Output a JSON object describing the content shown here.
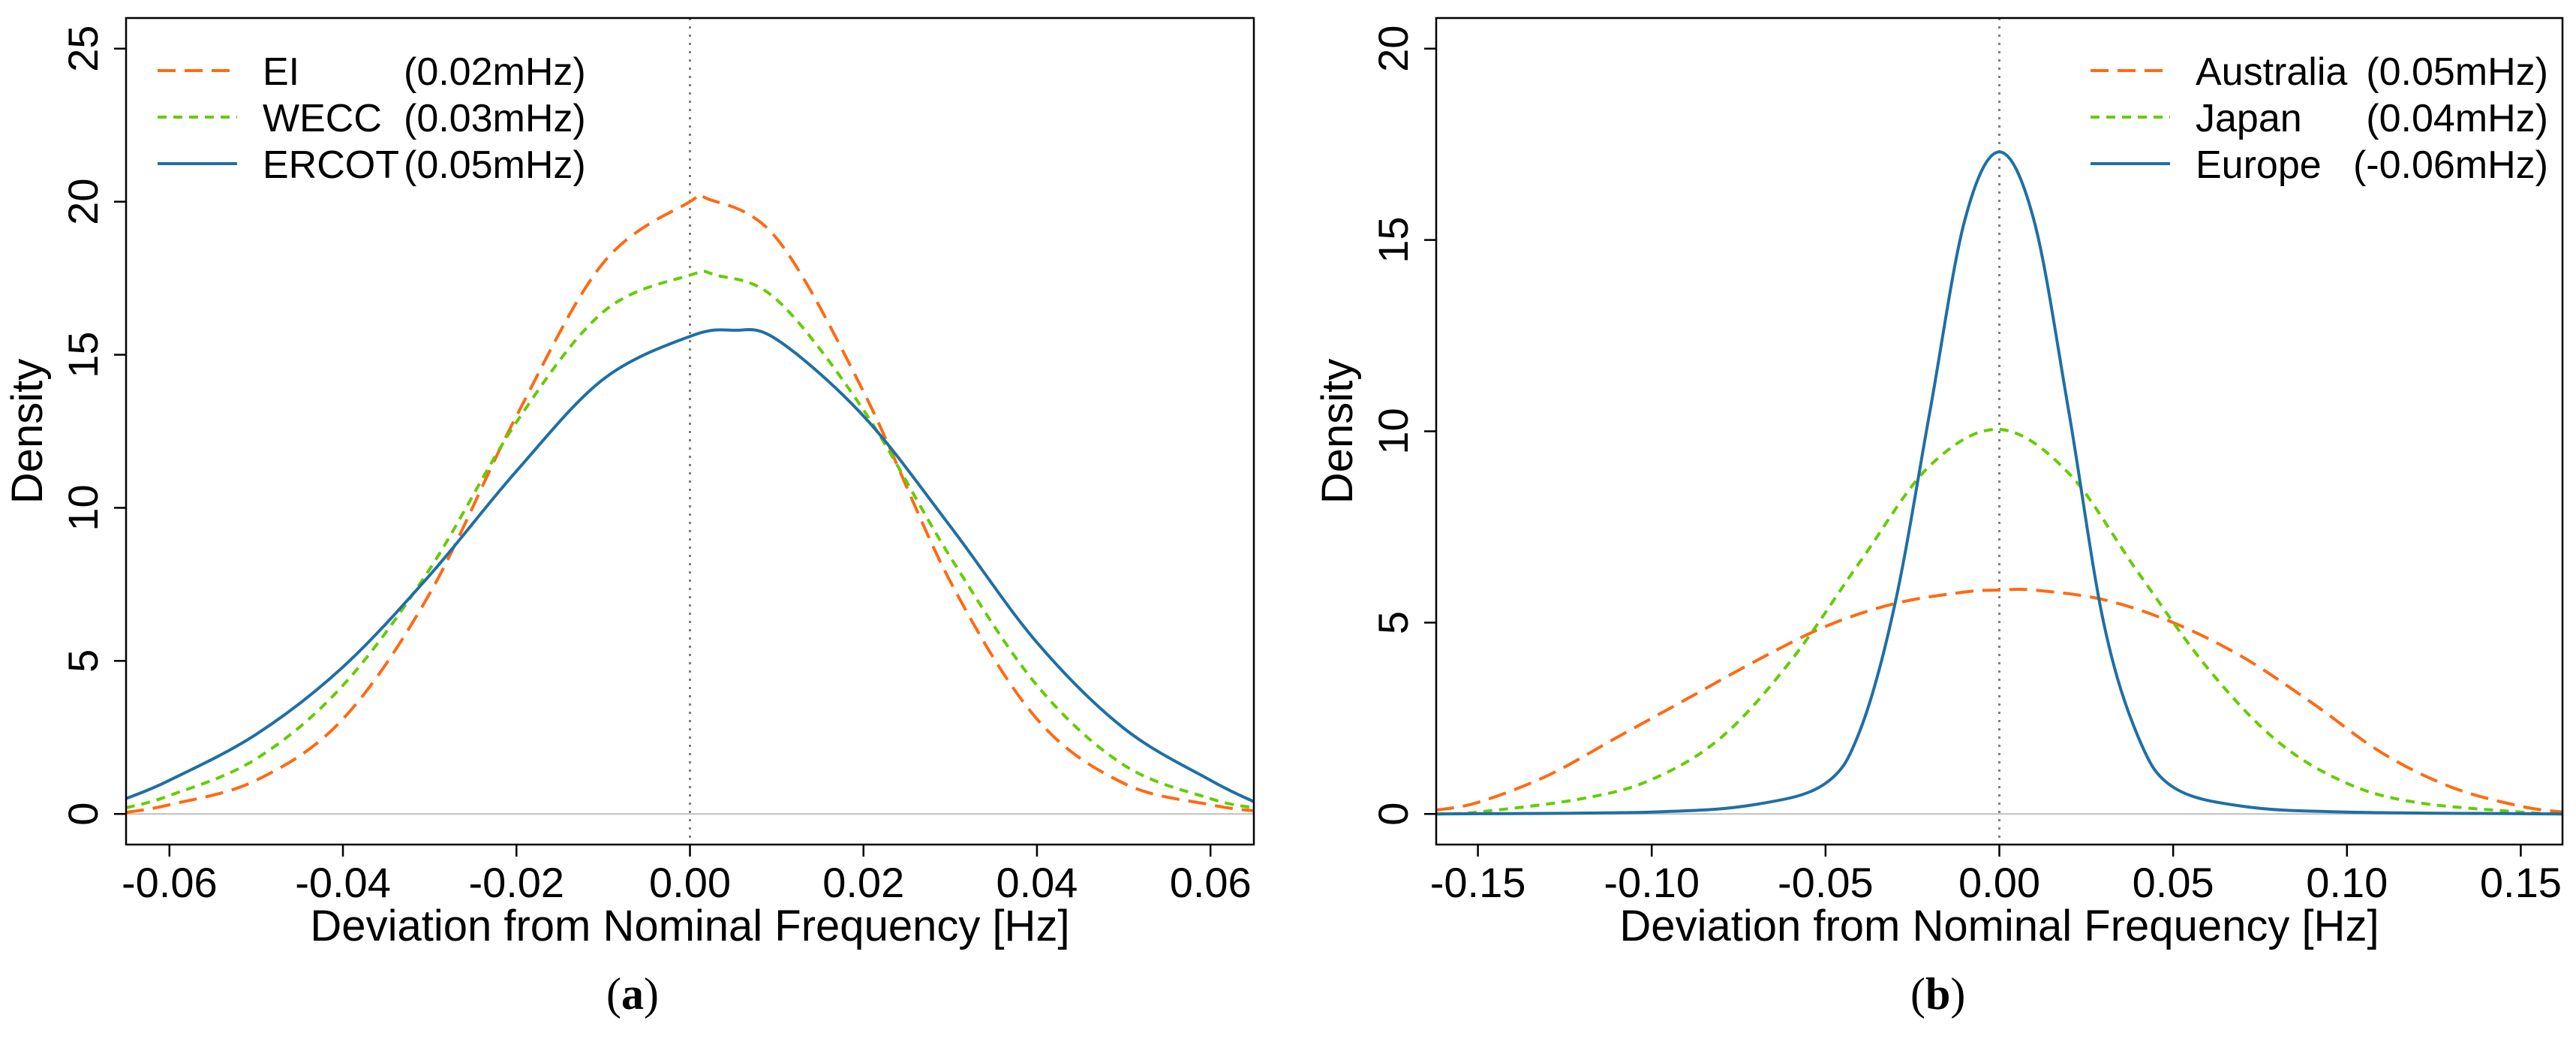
{
  "panels": {
    "a": {
      "caption_letter": "a"
    },
    "b": {
      "caption_letter": "b"
    }
  },
  "chart_data": [
    {
      "type": "line",
      "xlabel": "Deviation from Nominal Frequency [Hz]",
      "ylabel": "Density",
      "xlim": [
        -0.065,
        0.065
      ],
      "ylim": [
        -1.0,
        26.0
      ],
      "xticks": [
        -0.06,
        -0.04,
        -0.02,
        0.0,
        0.02,
        0.04,
        0.06
      ],
      "xtick_labels": [
        "-0.06",
        "-0.04",
        "-0.02",
        "0.00",
        "0.02",
        "0.04",
        "0.06"
      ],
      "yticks": [
        0,
        5,
        10,
        15,
        20,
        25
      ],
      "ytick_labels": [
        "0",
        "5",
        "10",
        "15",
        "20",
        "25"
      ],
      "legend_position": "top-left",
      "reference_line": {
        "x": 0.0,
        "style": "dotted",
        "color": "#7f7f7f"
      },
      "baseline": {
        "y": 0,
        "color": "#bfbfbf"
      },
      "series": [
        {
          "name": "EI",
          "annotation": "(0.02mHz)",
          "color": "#ff6a13",
          "dash": "long-dash",
          "x": [
            -0.065,
            -0.06,
            -0.05,
            -0.04,
            -0.03,
            -0.02,
            -0.01,
            0.0,
            0.002,
            0.01,
            0.02,
            0.03,
            0.04,
            0.05,
            0.06,
            0.065
          ],
          "y": [
            0.05,
            0.3,
            1.1,
            3.1,
            7.2,
            13.0,
            18.0,
            20.0,
            20.1,
            18.8,
            13.8,
            7.6,
            3.1,
            1.0,
            0.3,
            0.1
          ]
        },
        {
          "name": "WECC",
          "annotation": "(0.03mHz)",
          "color": "#66cc00",
          "dash": "short-dash",
          "x": [
            -0.065,
            -0.06,
            -0.05,
            -0.04,
            -0.03,
            -0.02,
            -0.01,
            0.0,
            0.003,
            0.01,
            0.02,
            0.03,
            0.04,
            0.05,
            0.06,
            0.065
          ],
          "y": [
            0.2,
            0.6,
            1.8,
            4.2,
            8.0,
            12.8,
            16.4,
            17.6,
            17.6,
            16.8,
            13.2,
            8.4,
            4.2,
            1.6,
            0.5,
            0.2
          ]
        },
        {
          "name": "ERCOT",
          "annotation": "(0.05mHz)",
          "color": "#1f6fa4",
          "dash": "solid",
          "x": [
            -0.065,
            -0.06,
            -0.05,
            -0.04,
            -0.03,
            -0.02,
            -0.01,
            0.0,
            0.005,
            0.01,
            0.02,
            0.03,
            0.04,
            0.05,
            0.06,
            0.065
          ],
          "y": [
            0.5,
            1.1,
            2.6,
            4.8,
            7.8,
            11.2,
            14.2,
            15.6,
            15.8,
            15.5,
            13.0,
            9.4,
            5.6,
            2.8,
            1.1,
            0.4
          ]
        }
      ]
    },
    {
      "type": "line",
      "xlabel": "Deviation from Nominal Frequency [Hz]",
      "ylabel": "Density",
      "xlim": [
        -0.162,
        0.162
      ],
      "ylim": [
        -0.8,
        20.8
      ],
      "xticks": [
        -0.15,
        -0.1,
        -0.05,
        0.0,
        0.05,
        0.1,
        0.15
      ],
      "xtick_labels": [
        "-0.15",
        "-0.10",
        "-0.05",
        "0.00",
        "0.05",
        "0.10",
        "0.15"
      ],
      "yticks": [
        0,
        5,
        10,
        15,
        20
      ],
      "ytick_labels": [
        "0",
        "5",
        "10",
        "15",
        "20"
      ],
      "legend_position": "top-right",
      "reference_line": {
        "x": 0.0,
        "style": "dotted",
        "color": "#7f7f7f"
      },
      "baseline": {
        "y": 0,
        "color": "#bfbfbf"
      },
      "series": [
        {
          "name": "Australia",
          "annotation": "(0.05mHz)",
          "color": "#ff6a13",
          "dash": "long-dash",
          "x": [
            -0.162,
            -0.15,
            -0.13,
            -0.11,
            -0.09,
            -0.07,
            -0.05,
            -0.03,
            -0.01,
            0.0,
            0.01,
            0.03,
            0.05,
            0.07,
            0.09,
            0.11,
            0.13,
            0.15,
            0.162
          ],
          "y": [
            0.1,
            0.3,
            1.0,
            2.0,
            3.0,
            4.0,
            4.9,
            5.5,
            5.8,
            5.85,
            5.85,
            5.6,
            5.0,
            4.1,
            2.9,
            1.6,
            0.7,
            0.2,
            0.05
          ]
        },
        {
          "name": "Japan",
          "annotation": "(0.04mHz)",
          "color": "#66cc00",
          "dash": "short-dash",
          "x": [
            -0.162,
            -0.15,
            -0.12,
            -0.1,
            -0.08,
            -0.06,
            -0.04,
            -0.02,
            0.0,
            0.02,
            0.04,
            0.06,
            0.08,
            0.1,
            0.12,
            0.15,
            0.162
          ],
          "y": [
            0.0,
            0.05,
            0.4,
            0.9,
            2.0,
            4.0,
            6.6,
            9.1,
            10.05,
            8.9,
            6.3,
            3.8,
            1.9,
            0.8,
            0.3,
            0.05,
            0.0
          ]
        },
        {
          "name": "Europe",
          "annotation": "(-0.06mHz)",
          "color": "#1f6fa4",
          "dash": "solid",
          "x": [
            -0.162,
            -0.1,
            -0.07,
            -0.05,
            -0.04,
            -0.03,
            -0.02,
            -0.01,
            0.0,
            0.01,
            0.02,
            0.03,
            0.04,
            0.05,
            0.07,
            0.1,
            0.162
          ],
          "y": [
            0.0,
            0.05,
            0.25,
            0.8,
            2.2,
            5.5,
            10.5,
            15.5,
            17.3,
            15.5,
            10.5,
            5.0,
            2.0,
            0.7,
            0.2,
            0.05,
            0.0
          ]
        }
      ]
    }
  ]
}
